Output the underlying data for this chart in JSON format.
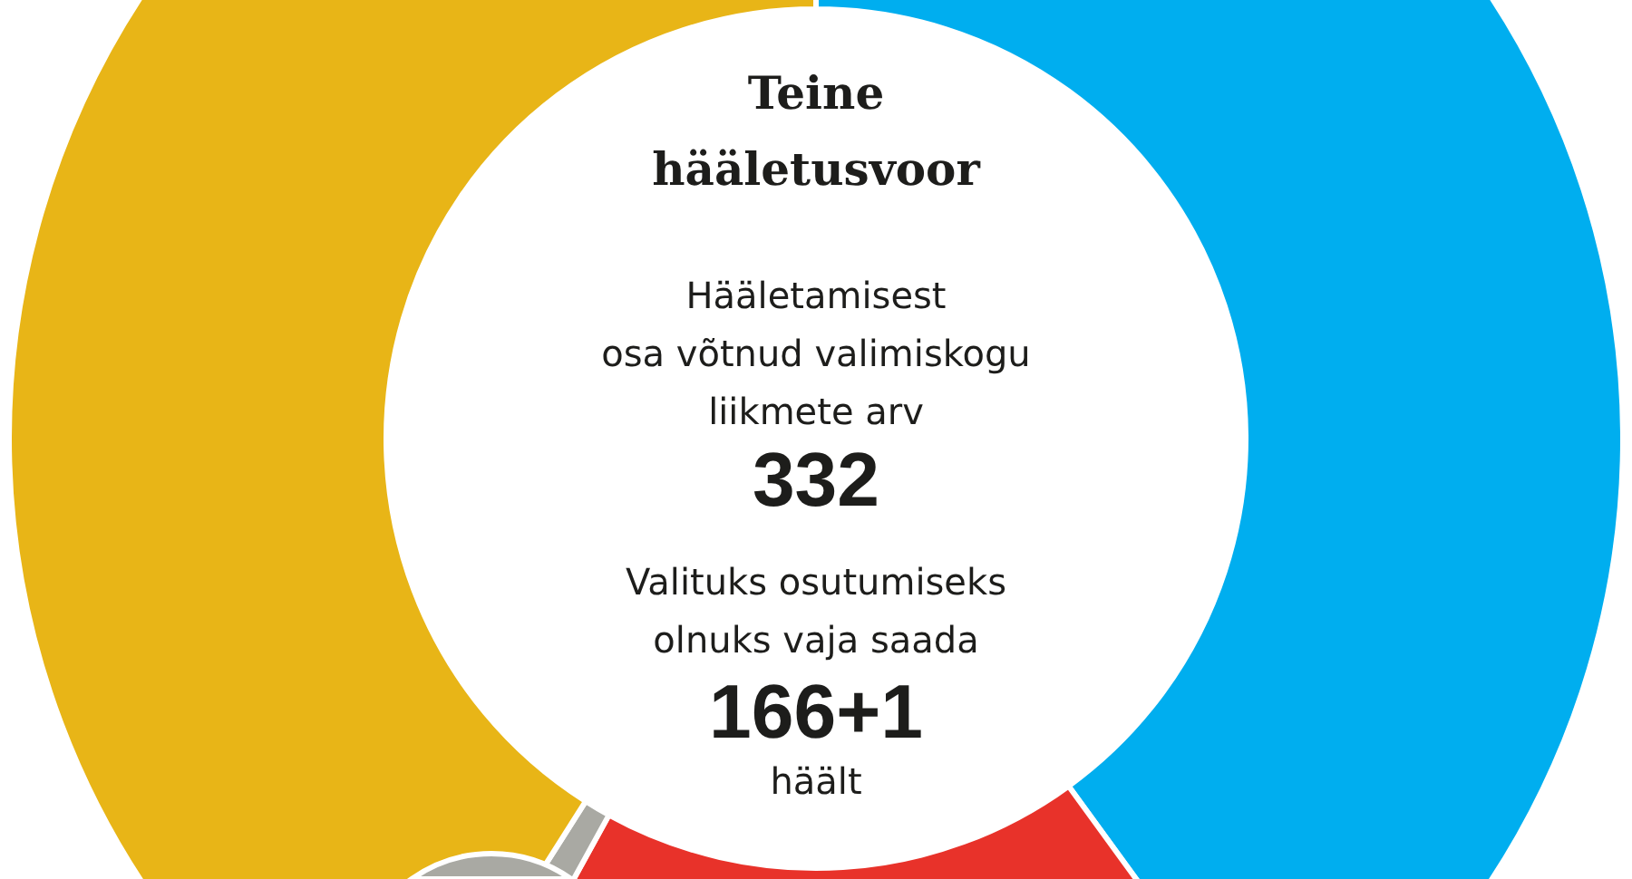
{
  "chart_data": {
    "type": "donut",
    "title": "Teine\nhääletusvoor",
    "annotations": [
      "Hääletamisest\nosa võtnud valimiskogu\nliikmete arv",
      "332",
      "Valituks osutumiseks\nolnuks vaja saada",
      "166+1",
      "häält"
    ],
    "categories": [
      null,
      null,
      null,
      null
    ],
    "values": [
      40,
      18,
      1,
      41
    ],
    "colors": [
      "#00aeef",
      "#e8322a",
      "#a9a9a3",
      "#e8b517"
    ]
  }
}
